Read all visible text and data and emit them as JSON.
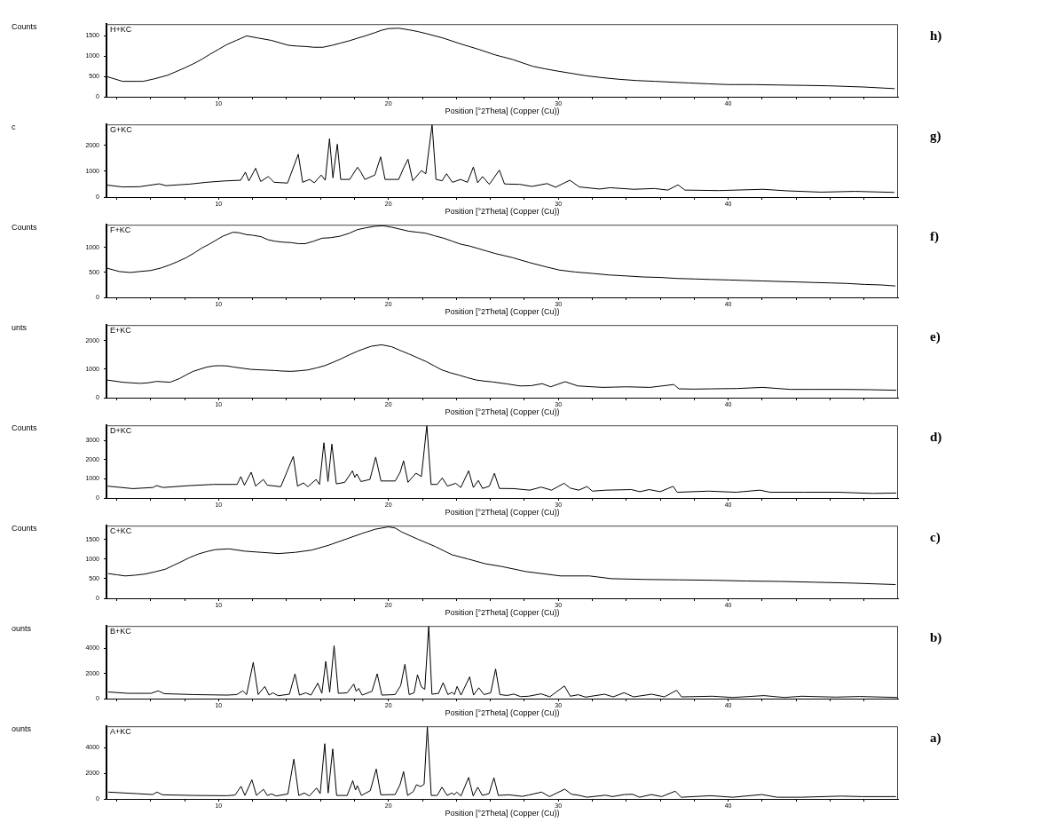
{
  "chart_data": [
    {
      "type": "line",
      "annotations": [
        "h)"
      ],
      "subtitle": "H+KC",
      "ylabel": "Counts",
      "xlabel": "Position [°2Theta] (Copper (Cu))",
      "color": "#000000",
      "xlim": [
        3.4,
        50
      ],
      "ylim": [
        0,
        1790
      ],
      "yticks": [
        0,
        500,
        1000,
        1500
      ],
      "xticks": [
        {
          "value": 4,
          "label": null
        },
        {
          "value": 6,
          "label": null
        },
        {
          "value": 8,
          "label": null
        },
        10,
        {
          "value": 12,
          "label": null
        },
        {
          "value": 14,
          "label": null
        },
        {
          "value": 16,
          "label": null
        },
        {
          "value": 18,
          "label": null
        },
        20,
        {
          "value": 22,
          "label": null
        },
        {
          "value": 24,
          "label": null
        },
        {
          "value": 26,
          "label": null
        },
        {
          "value": 28,
          "label": null
        },
        30,
        {
          "value": 32,
          "label": null
        },
        {
          "value": 34,
          "label": null
        },
        {
          "value": 36,
          "label": null
        },
        {
          "value": 38,
          "label": null
        },
        40,
        {
          "value": 42,
          "label": null
        },
        {
          "value": 44,
          "label": null
        },
        {
          "value": 46,
          "label": null
        },
        {
          "value": 48,
          "label": null
        }
      ],
      "x": [
        3.4,
        4.35,
        5.55,
        6.2,
        7.0,
        8.0,
        8.5,
        9.0,
        9.5,
        10.0,
        10.5,
        11.05,
        11.65,
        12.3,
        13.1,
        14.1,
        14.6,
        15.1,
        15.6,
        16.15,
        16.7,
        17.15,
        17.7,
        18.15,
        18.7,
        19.2,
        19.6,
        20.0,
        20.6,
        21.2,
        21.7,
        22.2,
        23.2,
        24.2,
        25.3,
        26.3,
        27.3,
        28.5,
        29.2,
        30.0,
        31.6,
        32.6,
        33.6,
        34.6,
        35.7,
        37.7,
        38.8,
        40.0,
        41.5,
        42.9,
        44.5,
        45.9,
        48.0,
        49.8
      ],
      "values": [
        500,
        380,
        380,
        440,
        530,
        710,
        810,
        920,
        1050,
        1170,
        1290,
        1390,
        1500,
        1450,
        1390,
        1270,
        1250,
        1240,
        1220,
        1220,
        1270,
        1320,
        1380,
        1440,
        1510,
        1580,
        1640,
        1680,
        1690,
        1650,
        1610,
        1560,
        1450,
        1310,
        1170,
        1030,
        920,
        750,
        690,
        630,
        520,
        470,
        430,
        400,
        380,
        340,
        320,
        300,
        300,
        290,
        280,
        270,
        240,
        200
      ]
    },
    {
      "type": "line",
      "annotations": [
        "g)"
      ],
      "subtitle": "G+KC",
      "ylabel": "c",
      "xlabel": "Position [°2Theta] (Copper (Cu))",
      "color": "#000000",
      "xlim": [
        3.4,
        50
      ],
      "ylim": [
        0,
        2800
      ],
      "yticks": [
        0,
        1000,
        2000
      ],
      "xticks": [
        {
          "value": 4,
          "label": null
        },
        {
          "value": 6,
          "label": null
        },
        {
          "value": 8,
          "label": null
        },
        10,
        {
          "value": 12,
          "label": null
        },
        {
          "value": 14,
          "label": null
        },
        {
          "value": 16,
          "label": null
        },
        {
          "value": 18,
          "label": null
        },
        20,
        {
          "value": 22,
          "label": null
        },
        {
          "value": 24,
          "label": null
        },
        {
          "value": 26,
          "label": null
        },
        {
          "value": 28,
          "label": null
        },
        30,
        {
          "value": 32,
          "label": null
        },
        {
          "value": 34,
          "label": null
        },
        {
          "value": 36,
          "label": null
        },
        {
          "value": 38,
          "label": null
        },
        40,
        {
          "value": 42,
          "label": null
        },
        {
          "value": 44,
          "label": null
        },
        {
          "value": 46,
          "label": null
        },
        {
          "value": 48,
          "label": null
        }
      ],
      "x": [
        3.45,
        4.35,
        5.35,
        6.5,
        6.9,
        8.3,
        9.3,
        10.3,
        11.3,
        11.58,
        11.78,
        12.18,
        12.48,
        12.93,
        13.27,
        14.06,
        14.69,
        14.95,
        15.35,
        15.64,
        16.04,
        16.28,
        16.53,
        16.73,
        16.99,
        17.19,
        17.72,
        18.18,
        18.38,
        18.61,
        19.2,
        19.54,
        19.8,
        20.6,
        20.9,
        21.15,
        21.43,
        21.94,
        22.2,
        22.57,
        22.8,
        23.16,
        23.42,
        23.76,
        24.25,
        24.65,
        25.0,
        25.25,
        25.54,
        25.94,
        26.53,
        26.83,
        27.03,
        27.72,
        28.44,
        29.34,
        29.84,
        30.68,
        31.24,
        32.44,
        33.05,
        34.45,
        35.65,
        36.45,
        37.05,
        37.45,
        39.46,
        42.06,
        43.47,
        45.47,
        47.47,
        49.78
      ],
      "values": [
        460,
        390,
        400,
        510,
        440,
        500,
        570,
        620,
        650,
        960,
        620,
        1110,
        600,
        790,
        570,
        540,
        1650,
        570,
        680,
        550,
        850,
        650,
        2250,
        740,
        2040,
        680,
        680,
        1150,
        960,
        680,
        850,
        1550,
        680,
        680,
        1130,
        1460,
        630,
        1020,
        900,
        2800,
        680,
        630,
        900,
        570,
        680,
        570,
        1160,
        550,
        790,
        490,
        1040,
        510,
        500,
        490,
        410,
        520,
        380,
        650,
        390,
        310,
        360,
        300,
        330,
        270,
        470,
        270,
        250,
        300,
        240,
        190,
        220,
        180
      ]
    },
    {
      "type": "line",
      "annotations": [
        "f)"
      ],
      "subtitle": "F+KC",
      "ylabel": "Counts",
      "xlabel": "Position [°2Theta] (Copper (Cu))",
      "color": "#000000",
      "xlim": [
        3.4,
        50
      ],
      "ylim": [
        0,
        1460
      ],
      "yticks": [
        0,
        500,
        1000
      ],
      "xticks": [
        {
          "value": 4,
          "label": null
        },
        {
          "value": 6,
          "label": null
        },
        {
          "value": 8,
          "label": null
        },
        10,
        {
          "value": 12,
          "label": null
        },
        {
          "value": 14,
          "label": null
        },
        {
          "value": 16,
          "label": null
        },
        {
          "value": 18,
          "label": null
        },
        20,
        {
          "value": 22,
          "label": null
        },
        {
          "value": 24,
          "label": null
        },
        {
          "value": 26,
          "label": null
        },
        {
          "value": 28,
          "label": null
        },
        30,
        {
          "value": 32,
          "label": null
        },
        {
          "value": 34,
          "label": null
        },
        {
          "value": 36,
          "label": null
        },
        {
          "value": 38,
          "label": null
        },
        40,
        {
          "value": 42,
          "label": null
        },
        {
          "value": 44,
          "label": null
        },
        {
          "value": 46,
          "label": null
        },
        {
          "value": 48,
          "label": null
        }
      ],
      "x": [
        3.4,
        4.15,
        4.8,
        5.35,
        6.0,
        6.6,
        7.1,
        7.6,
        8.1,
        8.6,
        9.0,
        9.45,
        10.25,
        10.85,
        11.2,
        11.65,
        12.0,
        12.5,
        12.9,
        13.3,
        13.8,
        14.3,
        14.7,
        15.1,
        15.6,
        16.1,
        16.6,
        17.15,
        17.7,
        18.15,
        18.7,
        19.2,
        19.7,
        20.2,
        20.7,
        21.2,
        21.7,
        22.2,
        22.7,
        23.25,
        23.75,
        24.25,
        24.8,
        25.3,
        25.8,
        26.3,
        26.8,
        27.3,
        28.3,
        29.2,
        30.05,
        31.0,
        32.05,
        33.0,
        34.05,
        35.0,
        36.05,
        37.0,
        38.05,
        39.0,
        40.05,
        41.0,
        42.05,
        43.0,
        44.05,
        45.0,
        46.05,
        47.0,
        48.05,
        49.0,
        49.85
      ],
      "values": [
        590,
        520,
        500,
        520,
        540,
        590,
        650,
        720,
        800,
        900,
        990,
        1070,
        1230,
        1310,
        1300,
        1260,
        1250,
        1220,
        1160,
        1130,
        1110,
        1100,
        1080,
        1080,
        1130,
        1190,
        1200,
        1230,
        1290,
        1360,
        1400,
        1430,
        1440,
        1410,
        1370,
        1330,
        1310,
        1290,
        1240,
        1190,
        1130,
        1070,
        1030,
        980,
        930,
        880,
        840,
        800,
        700,
        620,
        550,
        510,
        480,
        450,
        430,
        410,
        400,
        380,
        370,
        360,
        350,
        340,
        330,
        320,
        310,
        300,
        290,
        280,
        260,
        250,
        230
      ]
    },
    {
      "type": "line",
      "annotations": [
        "e)"
      ],
      "subtitle": "E+KC",
      "ylabel": "unts",
      "xlabel": "Position [°2Theta] (Copper (Cu))",
      "color": "#000000",
      "xlim": [
        3.4,
        50
      ],
      "ylim": [
        0,
        2540
      ],
      "yticks": [
        0,
        1000,
        2000
      ],
      "xticks": [
        {
          "value": 4,
          "label": null
        },
        {
          "value": 6,
          "label": null
        },
        {
          "value": 8,
          "label": null
        },
        10,
        {
          "value": 12,
          "label": null
        },
        {
          "value": 14,
          "label": null
        },
        {
          "value": 16,
          "label": null
        },
        {
          "value": 18,
          "label": null
        },
        20,
        {
          "value": 22,
          "label": null
        },
        {
          "value": 24,
          "label": null
        },
        {
          "value": 26,
          "label": null
        },
        {
          "value": 28,
          "label": null
        },
        30,
        {
          "value": 32,
          "label": null
        },
        {
          "value": 34,
          "label": null
        },
        {
          "value": 36,
          "label": null
        },
        {
          "value": 38,
          "label": null
        },
        40,
        {
          "value": 42,
          "label": null
        },
        {
          "value": 44,
          "label": null
        },
        {
          "value": 46,
          "label": null
        },
        {
          "value": 48,
          "label": null
        }
      ],
      "x": [
        3.4,
        4.35,
        4.85,
        5.35,
        5.85,
        6.35,
        7.15,
        7.7,
        8.1,
        8.5,
        9.3,
        9.7,
        10.1,
        10.5,
        10.9,
        11.4,
        11.9,
        12.6,
        13.3,
        13.8,
        14.25,
        14.75,
        15.25,
        15.75,
        16.25,
        16.75,
        17.25,
        17.7,
        18.2,
        18.6,
        19.0,
        19.6,
        20.2,
        20.7,
        21.2,
        21.7,
        22.2,
        22.7,
        23.15,
        23.65,
        24.15,
        24.65,
        25.15,
        25.65,
        26.15,
        27.0,
        27.75,
        28.4,
        29.05,
        29.55,
        30.4,
        31.15,
        32.6,
        33.3,
        34.0,
        35.4,
        36.8,
        37.1,
        38.0,
        39.0,
        40.5,
        42.05,
        43.65,
        45.0,
        46.7,
        48.3,
        49.9
      ],
      "values": [
        620,
        540,
        520,
        500,
        520,
        570,
        540,
        670,
        800,
        920,
        1070,
        1110,
        1120,
        1110,
        1070,
        1030,
        990,
        970,
        950,
        930,
        920,
        940,
        970,
        1040,
        1120,
        1240,
        1370,
        1500,
        1630,
        1720,
        1800,
        1850,
        1780,
        1650,
        1530,
        1400,
        1270,
        1110,
        970,
        870,
        790,
        700,
        620,
        580,
        550,
        480,
        410,
        420,
        490,
        380,
        560,
        410,
        360,
        370,
        380,
        360,
        460,
        310,
        300,
        310,
        320,
        360,
        290,
        290,
        290,
        280,
        260
      ]
    },
    {
      "type": "line",
      "annotations": [
        "d)"
      ],
      "subtitle": "D+KC",
      "ylabel": "Counts",
      "xlabel": "Position [°2Theta] (Copper (Cu))",
      "color": "#000000",
      "xlim": [
        3.4,
        50
      ],
      "ylim": [
        0,
        3800
      ],
      "yticks": [
        0,
        1000,
        2000,
        3000
      ],
      "xticks": [
        {
          "value": 4,
          "label": null
        },
        {
          "value": 6,
          "label": null
        },
        {
          "value": 8,
          "label": null
        },
        10,
        {
          "value": 12,
          "label": null
        },
        {
          "value": 14,
          "label": null
        },
        {
          "value": 16,
          "label": null
        },
        {
          "value": 18,
          "label": null
        },
        20,
        {
          "value": 22,
          "label": null
        },
        {
          "value": 24,
          "label": null
        },
        {
          "value": 26,
          "label": null
        },
        {
          "value": 28,
          "label": null
        },
        30,
        {
          "value": 32,
          "label": null
        },
        {
          "value": 34,
          "label": null
        },
        {
          "value": 36,
          "label": null
        },
        {
          "value": 38,
          "label": null
        },
        40,
        {
          "value": 42,
          "label": null
        },
        {
          "value": 44,
          "label": null
        },
        {
          "value": 46,
          "label": null
        },
        {
          "value": 48,
          "label": null
        }
      ],
      "x": [
        3.47,
        4.95,
        6.14,
        6.34,
        6.73,
        8.32,
        9.7,
        11.09,
        11.31,
        11.52,
        11.92,
        12.18,
        12.63,
        12.87,
        13.66,
        14.4,
        14.65,
        15.0,
        15.25,
        15.74,
        15.94,
        16.2,
        16.44,
        16.67,
        16.93,
        17.43,
        17.88,
        18.02,
        18.14,
        18.38,
        18.91,
        19.25,
        19.56,
        20.4,
        20.69,
        20.89,
        21.15,
        21.62,
        21.94,
        22.26,
        22.51,
        22.87,
        23.17,
        23.47,
        23.96,
        24.26,
        24.72,
        25.0,
        25.29,
        25.54,
        25.94,
        26.24,
        26.53,
        27.38,
        28.32,
        28.99,
        29.6,
        30.34,
        30.7,
        31.2,
        31.7,
        32.0,
        32.8,
        34.3,
        34.8,
        35.35,
        36.0,
        36.76,
        37.0,
        38.85,
        40.46,
        41.87,
        42.47,
        44.48,
        46.5,
        48.5,
        49.9
      ],
      "values": [
        620,
        490,
        550,
        650,
        550,
        650,
        710,
        710,
        1120,
        670,
        1350,
        620,
        970,
        670,
        590,
        2180,
        620,
        790,
        590,
        970,
        710,
        2890,
        860,
        2820,
        740,
        820,
        1420,
        1080,
        1260,
        860,
        970,
        2140,
        890,
        890,
        1350,
        1950,
        820,
        1300,
        1120,
        3800,
        710,
        710,
        1050,
        620,
        770,
        550,
        1420,
        550,
        920,
        500,
        620,
        1290,
        500,
        490,
        410,
        570,
        410,
        770,
        520,
        410,
        600,
        360,
        410,
        440,
        330,
        440,
        330,
        610,
        300,
        360,
        300,
        410,
        300,
        300,
        300,
        240,
        260
      ]
    },
    {
      "type": "line",
      "annotations": [
        "c)"
      ],
      "subtitle": "C+KC",
      "ylabel": "Counts",
      "xlabel": "Position [°2Theta] (Copper (Cu))",
      "color": "#000000",
      "xlim": [
        3.4,
        50
      ],
      "ylim": [
        0,
        1850
      ],
      "yticks": [
        0,
        500,
        1000,
        1500
      ],
      "xticks": [
        {
          "value": 4,
          "label": null
        },
        {
          "value": 6,
          "label": null
        },
        {
          "value": 8,
          "label": null
        },
        10,
        {
          "value": 12,
          "label": null
        },
        {
          "value": 14,
          "label": null
        },
        {
          "value": 16,
          "label": null
        },
        {
          "value": 18,
          "label": null
        },
        20,
        {
          "value": 22,
          "label": null
        },
        {
          "value": 24,
          "label": null
        },
        {
          "value": 26,
          "label": null
        },
        {
          "value": 28,
          "label": null
        },
        30,
        {
          "value": 32,
          "label": null
        },
        {
          "value": 34,
          "label": null
        },
        {
          "value": 36,
          "label": null
        },
        {
          "value": 38,
          "label": null
        },
        40,
        {
          "value": 42,
          "label": null
        },
        {
          "value": 44,
          "label": null
        },
        {
          "value": 46,
          "label": null
        },
        {
          "value": 48,
          "label": null
        }
      ],
      "x": [
        3.5,
        4.0,
        4.5,
        5.1,
        5.7,
        6.3,
        6.86,
        7.35,
        7.84,
        8.3,
        8.82,
        9.3,
        9.8,
        10.6,
        11.57,
        12.55,
        13.53,
        14.5,
        15.5,
        16.47,
        17.45,
        18.43,
        19.22,
        20.0,
        20.4,
        20.78,
        21.76,
        22.75,
        23.73,
        24.7,
        25.7,
        26.67,
        28.1,
        30.14,
        31.83,
        33.13,
        35.12,
        37.11,
        39.1,
        41.1,
        43.09,
        45.08,
        47.07,
        49.86
      ],
      "values": [
        630,
        600,
        570,
        590,
        620,
        680,
        740,
        840,
        940,
        1040,
        1130,
        1190,
        1240,
        1260,
        1200,
        1170,
        1140,
        1170,
        1230,
        1350,
        1500,
        1650,
        1760,
        1820,
        1790,
        1690,
        1500,
        1320,
        1110,
        1000,
        880,
        810,
        680,
        570,
        570,
        500,
        480,
        470,
        460,
        440,
        430,
        410,
        390,
        350
      ]
    },
    {
      "type": "line",
      "annotations": [
        "b)"
      ],
      "subtitle": "B+KC",
      "ylabel": "ounts",
      "xlabel": "Position [°2Theta] (Copper (Cu))",
      "color": "#000000",
      "xlim": [
        3.4,
        50
      ],
      "ylim": [
        0,
        5780
      ],
      "yticks": [
        0,
        2000,
        4000
      ],
      "xticks": [
        {
          "value": 4,
          "label": null
        },
        {
          "value": 6,
          "label": null
        },
        {
          "value": 8,
          "label": null
        },
        10,
        {
          "value": 12,
          "label": null
        },
        {
          "value": 14,
          "label": null
        },
        {
          "value": 16,
          "label": null
        },
        {
          "value": 18,
          "label": null
        },
        20,
        {
          "value": 22,
          "label": null
        },
        {
          "value": 24,
          "label": null
        },
        {
          "value": 26,
          "label": null
        },
        {
          "value": 28,
          "label": null
        },
        30,
        {
          "value": 32,
          "label": null
        },
        {
          "value": 34,
          "label": null
        },
        {
          "value": 36,
          "label": null
        },
        {
          "value": 38,
          "label": null
        },
        40,
        {
          "value": 42,
          "label": null
        },
        {
          "value": 44,
          "label": null
        },
        {
          "value": 46,
          "label": null
        },
        {
          "value": 48,
          "label": null
        }
      ],
      "x": [
        3.5,
        4.66,
        6.02,
        6.45,
        6.8,
        8.54,
        10.49,
        11.07,
        11.42,
        11.65,
        12.04,
        12.33,
        12.72,
        12.97,
        13.2,
        13.5,
        14.17,
        14.5,
        14.76,
        15.13,
        15.44,
        15.84,
        16.08,
        16.31,
        16.54,
        16.8,
        17.05,
        17.57,
        17.96,
        18.1,
        18.25,
        18.45,
        19.03,
        19.34,
        19.61,
        20.39,
        20.72,
        20.97,
        21.22,
        21.51,
        21.71,
        21.94,
        22.14,
        22.37,
        22.56,
        22.95,
        23.22,
        23.5,
        23.75,
        23.88,
        24.04,
        24.27,
        24.78,
        25.01,
        25.32,
        25.63,
        26.02,
        26.31,
        26.56,
        26.99,
        27.38,
        27.78,
        28.25,
        28.99,
        29.5,
        30.36,
        30.71,
        31.17,
        31.61,
        32.72,
        33.23,
        33.87,
        34.43,
        35.5,
        36.25,
        36.96,
        37.26,
        39.07,
        40.28,
        42.1,
        43.31,
        44.31,
        46.33,
        47.74,
        49.96
      ],
      "values": [
        530,
        420,
        420,
        620,
        390,
        320,
        280,
        320,
        620,
        320,
        2890,
        320,
        970,
        280,
        460,
        230,
        350,
        1970,
        280,
        460,
        280,
        1230,
        420,
        2960,
        510,
        4210,
        420,
        460,
        1160,
        580,
        810,
        280,
        580,
        1970,
        280,
        320,
        1040,
        2730,
        320,
        460,
        1900,
        930,
        740,
        5780,
        350,
        420,
        1270,
        320,
        510,
        320,
        970,
        280,
        1730,
        280,
        860,
        320,
        460,
        2360,
        320,
        250,
        360,
        160,
        190,
        380,
        140,
        1010,
        190,
        310,
        120,
        350,
        140,
        470,
        140,
        350,
        140,
        660,
        140,
        190,
        90,
        240,
        90,
        190,
        120,
        170,
        90
      ]
    },
    {
      "type": "line",
      "annotations": [
        "a)"
      ],
      "subtitle": "A+KC",
      "ylabel": "ounts",
      "xlabel": "Position [°2Theta] (Copper (Cu))",
      "color": "#000000",
      "xlim": [
        3.4,
        50
      ],
      "ylim": [
        0,
        5650
      ],
      "yticks": [
        0,
        2000,
        4000
      ],
      "xticks": [
        {
          "value": 4,
          "label": null
        },
        {
          "value": 6,
          "label": null
        },
        {
          "value": 8,
          "label": null
        },
        10,
        {
          "value": 12,
          "label": null
        },
        {
          "value": 14,
          "label": null
        },
        {
          "value": 16,
          "label": null
        },
        {
          "value": 18,
          "label": null
        },
        20,
        {
          "value": 22,
          "label": null
        },
        {
          "value": 24,
          "label": null
        },
        {
          "value": 26,
          "label": null
        },
        {
          "value": 28,
          "label": null
        },
        30,
        {
          "value": 32,
          "label": null
        },
        {
          "value": 34,
          "label": null
        },
        {
          "value": 36,
          "label": null
        },
        {
          "value": 38,
          "label": null
        },
        40,
        {
          "value": 42,
          "label": null
        },
        {
          "value": 44,
          "label": null
        },
        {
          "value": 46,
          "label": null
        },
        {
          "value": 48,
          "label": null
        }
      ],
      "x": [
        3.5,
        5.2,
        6.12,
        6.37,
        6.7,
        8.54,
        10.49,
        10.97,
        11.32,
        11.55,
        11.96,
        12.23,
        12.64,
        12.87,
        13.11,
        13.4,
        14.08,
        14.43,
        14.72,
        15.05,
        15.34,
        15.77,
        15.98,
        16.25,
        16.45,
        16.72,
        16.95,
        17.57,
        17.9,
        18.06,
        18.17,
        18.41,
        18.93,
        19.28,
        19.55,
        20.39,
        20.68,
        20.89,
        21.13,
        21.46,
        21.65,
        21.9,
        22.1,
        22.29,
        22.52,
        22.87,
        23.15,
        23.46,
        23.73,
        23.88,
        24.02,
        24.27,
        24.72,
        24.99,
        25.26,
        25.53,
        25.92,
        26.21,
        26.47,
        27.08,
        27.87,
        28.25,
        29.02,
        29.48,
        30.38,
        30.78,
        31.18,
        31.68,
        32.78,
        33.18,
        33.88,
        34.38,
        34.78,
        35.48,
        36.08,
        36.88,
        37.24,
        38.98,
        40.28,
        41.98,
        42.88,
        44.28,
        46.68,
        47.88,
        49.88
      ],
      "values": [
        530,
        410,
        340,
        530,
        320,
        270,
        250,
        300,
        980,
        270,
        1490,
        270,
        750,
        270,
        390,
        230,
        390,
        3090,
        270,
        460,
        230,
        850,
        410,
        4300,
        460,
        3890,
        270,
        270,
        1420,
        690,
        1030,
        270,
        640,
        2330,
        320,
        340,
        1100,
        2130,
        270,
        570,
        1100,
        960,
        1140,
        5650,
        270,
        270,
        910,
        270,
        460,
        320,
        530,
        230,
        1670,
        230,
        910,
        270,
        410,
        1650,
        270,
        320,
        200,
        300,
        530,
        180,
        760,
        360,
        290,
        130,
        290,
        180,
        340,
        360,
        130,
        340,
        180,
        600,
        130,
        250,
        130,
        340,
        130,
        130,
        220,
        180,
        180
      ]
    }
  ]
}
